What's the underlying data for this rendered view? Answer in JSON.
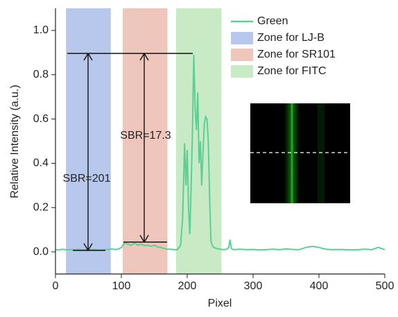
{
  "chart_data": {
    "type": "line",
    "xlabel": "Pixel",
    "ylabel": "Relative Intensity (a.u.)",
    "xlim": [
      0,
      500
    ],
    "xticks": [
      0,
      100,
      200,
      300,
      400,
      500
    ],
    "ylim": [
      -0.1,
      1.1
    ],
    "yticks": [
      {
        "value": 0,
        "label": "0.0"
      },
      {
        "value": 0.2,
        "label": "0.2"
      },
      {
        "value": 0.4,
        "label": "0.4"
      },
      {
        "value": 0.6,
        "label": "0.6"
      },
      {
        "value": 0.8,
        "label": "0.8"
      },
      {
        "value": 1.0,
        "label": "1.0"
      }
    ],
    "x": [
      0,
      5,
      10,
      15,
      20,
      25,
      30,
      35,
      40,
      45,
      50,
      55,
      60,
      65,
      70,
      75,
      80,
      85,
      90,
      95,
      100,
      105,
      110,
      115,
      120,
      125,
      130,
      135,
      140,
      145,
      150,
      155,
      160,
      165,
      170,
      175,
      180,
      185,
      190,
      193,
      196,
      198,
      200,
      202,
      204,
      206,
      208,
      210,
      212,
      214,
      216,
      218,
      220,
      222,
      224,
      226,
      228,
      230,
      232,
      234,
      236,
      238,
      240,
      245,
      250,
      255,
      260,
      263,
      265,
      267,
      270,
      280,
      290,
      300,
      310,
      320,
      330,
      340,
      350,
      360,
      370,
      380,
      390,
      400,
      410,
      420,
      430,
      440,
      450,
      460,
      470,
      480,
      490,
      500
    ],
    "series": [
      {
        "name": "Green",
        "color": "#5ccf95",
        "values": [
          0.01,
          0.008,
          0.012,
          0.01,
          0.009,
          0.011,
          0.01,
          0.012,
          0.009,
          0.01,
          0.011,
          0.01,
          0.012,
          0.009,
          0.01,
          0.011,
          0.01,
          0.013,
          0.011,
          0.012,
          0.02,
          0.04,
          0.035,
          0.03,
          0.04,
          0.03,
          0.035,
          0.028,
          0.03,
          0.025,
          0.03,
          0.022,
          0.02,
          0.015,
          0.012,
          0.012,
          0.01,
          0.01,
          0.03,
          0.15,
          0.49,
          0.3,
          0.46,
          0.2,
          0.08,
          0.3,
          0.55,
          0.89,
          0.65,
          0.55,
          0.72,
          0.4,
          0.5,
          0.3,
          0.45,
          0.58,
          0.61,
          0.6,
          0.5,
          0.25,
          0.05,
          0.03,
          0.02,
          0.015,
          0.012,
          0.01,
          0.012,
          0.02,
          0.055,
          0.015,
          0.01,
          0.012,
          0.01,
          0.011,
          0.009,
          0.01,
          0.012,
          0.01,
          0.013,
          0.011,
          0.01,
          0.02,
          0.025,
          0.02,
          0.012,
          0.01,
          0.011,
          0.01,
          0.009,
          0.01,
          0.012,
          0.01,
          0.02,
          0.01
        ]
      }
    ],
    "zones": [
      {
        "name": "Zone for LJ-B",
        "color": "#b8c8ec",
        "range": [
          16,
          84
        ]
      },
      {
        "name": "Zone for SR101",
        "color": "#efc6bc",
        "range": [
          102,
          170
        ]
      },
      {
        "name": "Zone for FITC",
        "color": "#c8eac4",
        "range": [
          183,
          252
        ]
      }
    ],
    "annotations": [
      "SBR=201",
      "SBR=17.3"
    ]
  }
}
